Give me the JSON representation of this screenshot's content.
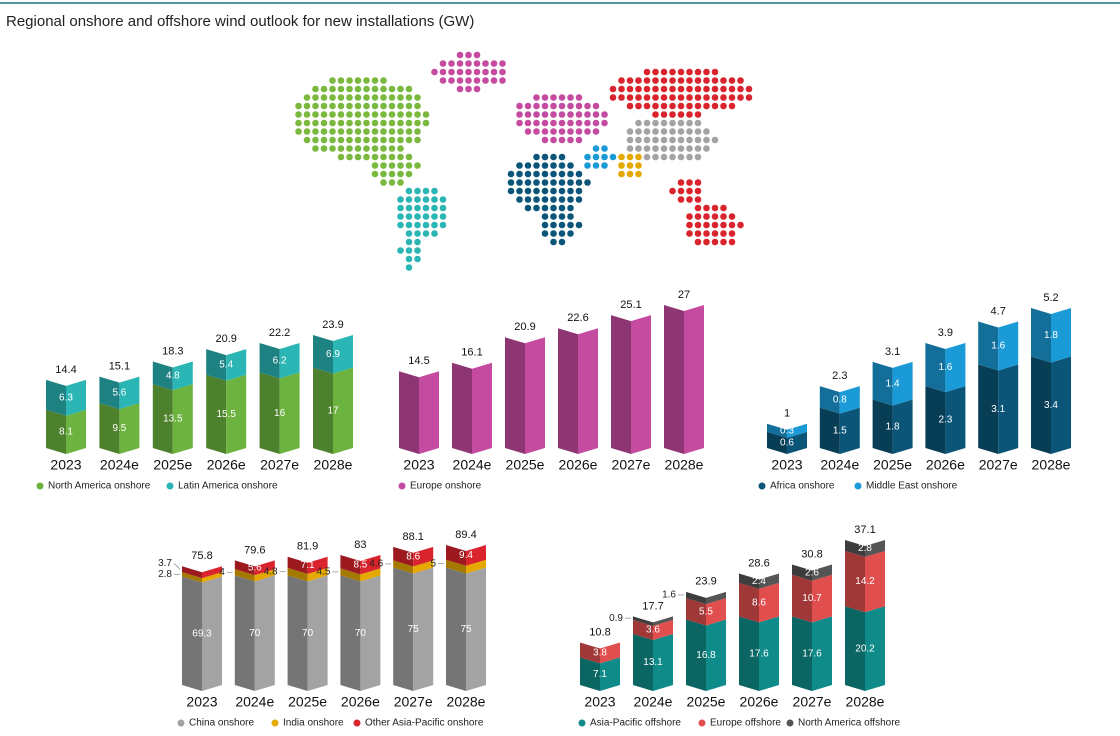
{
  "title": "Regional onshore and offshore wind outlook for new installations (GW)",
  "chart_data": [
    {
      "type": "bar",
      "stacked": true,
      "categories": [
        "2023",
        "2024e",
        "2025e",
        "2026e",
        "2027e",
        "2028e"
      ],
      "series": [
        {
          "name": "North America onshore",
          "color": "#6db33f",
          "values": [
            8.1,
            9.5,
            13.5,
            15.5,
            16,
            17
          ]
        },
        {
          "name": "Latin America onshore",
          "color": "#2bb5b5",
          "values": [
            6.3,
            5.6,
            4.8,
            5.4,
            6.2,
            6.9
          ]
        }
      ],
      "totals": [
        14.4,
        15.1,
        18.3,
        20.9,
        22.2,
        23.9
      ]
    },
    {
      "type": "bar",
      "stacked": true,
      "categories": [
        "2023",
        "2024e",
        "2025e",
        "2026e",
        "2027e",
        "2028e"
      ],
      "series": [
        {
          "name": "Europe onshore",
          "color": "#c44ba0",
          "values": [
            14.5,
            16.1,
            20.9,
            22.6,
            25.1,
            27
          ]
        }
      ]
    },
    {
      "type": "bar",
      "stacked": true,
      "categories": [
        "2023",
        "2024e",
        "2025e",
        "2026e",
        "2027e",
        "2028e"
      ],
      "series": [
        {
          "name": "Africa onshore",
          "color": "#0b5578",
          "values": [
            0.6,
            1.5,
            1.8,
            2.3,
            3.1,
            3.4
          ]
        },
        {
          "name": "Middle East onshore",
          "color": "#1a9ad6",
          "values": [
            0.3,
            0.8,
            1.4,
            1.6,
            1.6,
            1.8
          ]
        }
      ],
      "totals": [
        1,
        2.3,
        3.1,
        3.9,
        4.7,
        5.2
      ]
    },
    {
      "type": "bar",
      "stacked": true,
      "categories": [
        "2023",
        "2024e",
        "2025e",
        "2026e",
        "2027e",
        "2028e"
      ],
      "series": [
        {
          "name": "China onshore",
          "color": "#a3a3a3",
          "values": [
            69.3,
            70,
            70,
            70,
            75,
            75
          ]
        },
        {
          "name": "India onshore",
          "color": "#e5a800",
          "values": [
            2.8,
            4,
            4.8,
            4.5,
            4.6,
            5
          ]
        },
        {
          "name": "Other Asia-Pacific onshore",
          "color": "#d9232d",
          "values": [
            3.7,
            5.6,
            7.1,
            8.5,
            8.6,
            9.4
          ]
        }
      ],
      "totals": [
        75.8,
        79.6,
        81.9,
        83,
        88.1,
        89.4
      ]
    },
    {
      "type": "bar",
      "stacked": true,
      "categories": [
        "2023",
        "2024e",
        "2025e",
        "2026e",
        "2027e",
        "2028e"
      ],
      "series": [
        {
          "name": "Asia-Pacific offshore",
          "color": "#0f8c8a",
          "values": [
            7.1,
            13.1,
            16.8,
            17.6,
            17.6,
            20.2
          ]
        },
        {
          "name": "Europe offshore",
          "color": "#e04e4e",
          "values": [
            3.8,
            3.6,
            5.5,
            8.6,
            10.7,
            14.2
          ]
        },
        {
          "name": "North America offshore",
          "color": "#555555",
          "values": [
            null,
            0.9,
            1.6,
            2.4,
            2.6,
            2.8
          ]
        }
      ],
      "totals": [
        10.8,
        17.7,
        23.9,
        28.6,
        30.8,
        37.1
      ]
    }
  ]
}
